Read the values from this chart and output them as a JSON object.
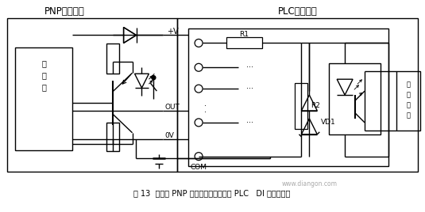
{
  "title": "图 13  传感器 PNP 型输出与源型输入的 PLC   DI 模块的接线",
  "watermark": "www.diangon.com",
  "bg_color": "#ffffff",
  "left_label": "PNP型传感器",
  "right_label": "PLC内部接线",
  "right_box2_label": "至处理器",
  "out_label": "OUT",
  "ov_label": "0V",
  "pv_label": "+V",
  "r1_label": "R1",
  "r2_label": "R2",
  "vd1_label": "VD1",
  "com_label": "COM",
  "zhudianlu": "主\n电\n路"
}
